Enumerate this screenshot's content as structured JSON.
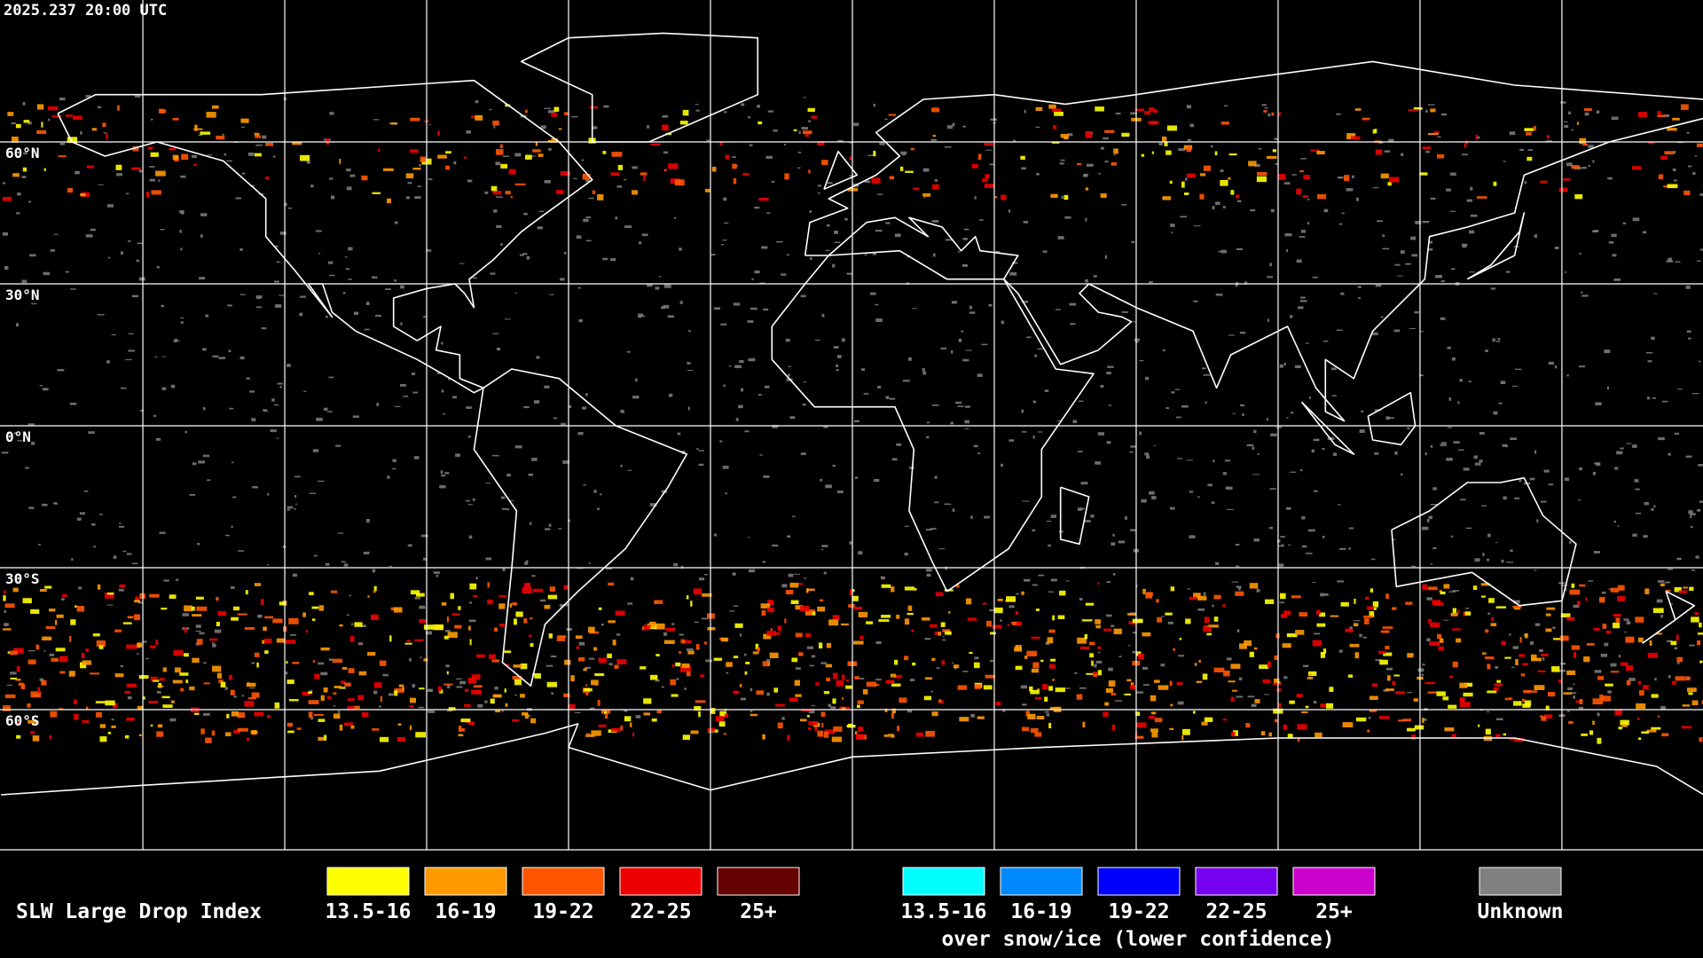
{
  "header": {
    "timestamp": "2025.237 20:00 UTC"
  },
  "map": {
    "lat_labels": [
      "60°N",
      "30°N",
      "0°N",
      "30°S",
      "60°S"
    ]
  },
  "legend": {
    "title": "SLW Large Drop Index",
    "categories": [
      {
        "label": "13.5-16",
        "color": "#ffff00"
      },
      {
        "label": "16-19",
        "color": "#ff9900"
      },
      {
        "label": "19-22",
        "color": "#ff5500"
      },
      {
        "label": "22-25",
        "color": "#ee0000"
      },
      {
        "label": "25+",
        "color": "#660000"
      }
    ],
    "snow_ice_categories": [
      {
        "label": "13.5-16",
        "color": "#00ffff"
      },
      {
        "label": "16-19",
        "color": "#0088ff"
      },
      {
        "label": "19-22",
        "color": "#0000ff"
      },
      {
        "label": "22-25",
        "color": "#7700ee"
      },
      {
        "label": "25+",
        "color": "#cc00cc"
      }
    ],
    "snow_ice_caption": "over snow/ice (lower confidence)",
    "unknown": {
      "label": "Unknown",
      "color": "#808080"
    }
  }
}
